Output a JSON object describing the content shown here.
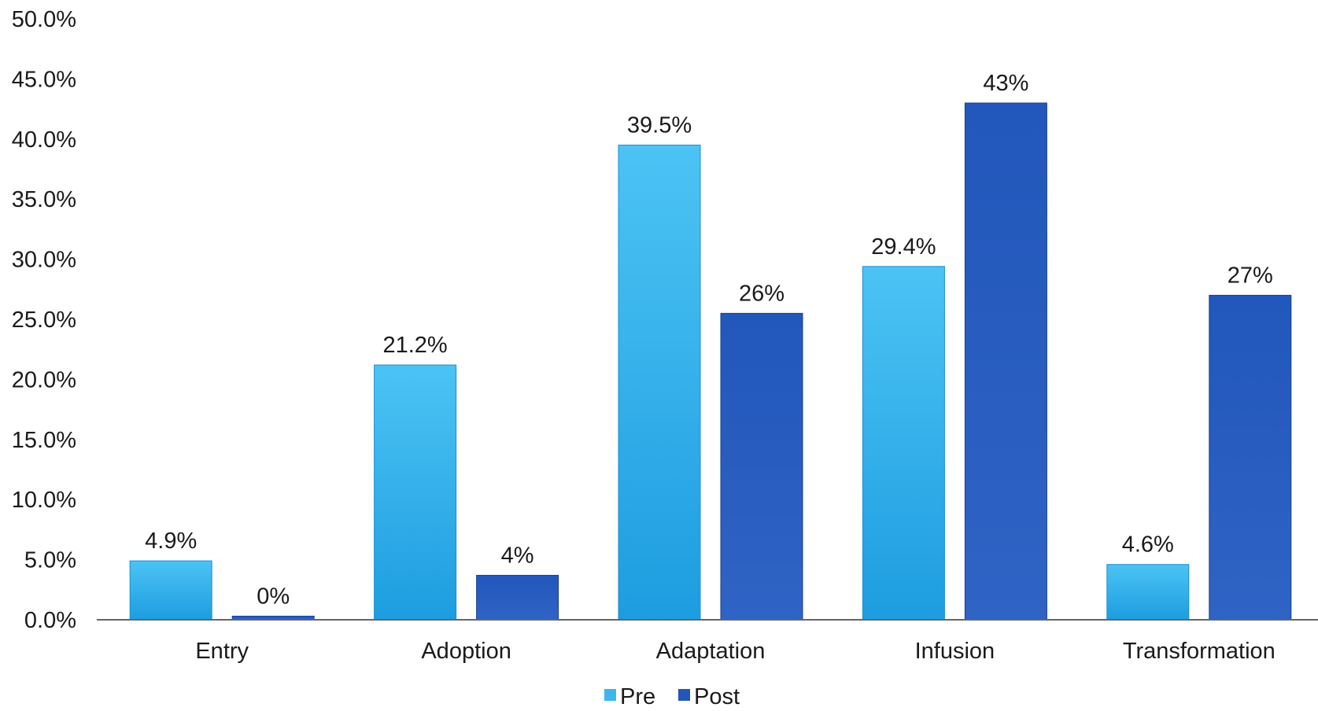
{
  "chart_data": {
    "type": "bar",
    "title": "",
    "xlabel": "",
    "ylabel": "",
    "ylim": [
      0,
      50
    ],
    "y_ticks": [
      "0.0%",
      "5.0%",
      "10.0%",
      "15.0%",
      "20.0%",
      "25.0%",
      "30.0%",
      "35.0%",
      "40.0%",
      "45.0%",
      "50.0%"
    ],
    "y_tick_values": [
      0,
      5,
      10,
      15,
      20,
      25,
      30,
      35,
      40,
      45,
      50
    ],
    "categories": [
      "Entry",
      "Adoption",
      "Adaptation",
      "Infusion",
      "Transformation"
    ],
    "series": [
      {
        "name": "Pre",
        "color": "#1fa3e3",
        "color_light": "#45c0f2",
        "values": [
          4.9,
          21.2,
          39.5,
          29.4,
          4.6
        ],
        "labels": [
          "4.9%",
          "21.2%",
          "39.5%",
          "29.4%",
          "4.6%"
        ]
      },
      {
        "name": "Post",
        "color": "#1c4fb0",
        "color_light": "#2a5fc2",
        "values": [
          0.3,
          3.7,
          25.5,
          43,
          27
        ],
        "labels": [
          "0%",
          "4%",
          "26%",
          "43%",
          "27%"
        ]
      }
    ],
    "grid": false,
    "legend_position": "bottom-center"
  }
}
